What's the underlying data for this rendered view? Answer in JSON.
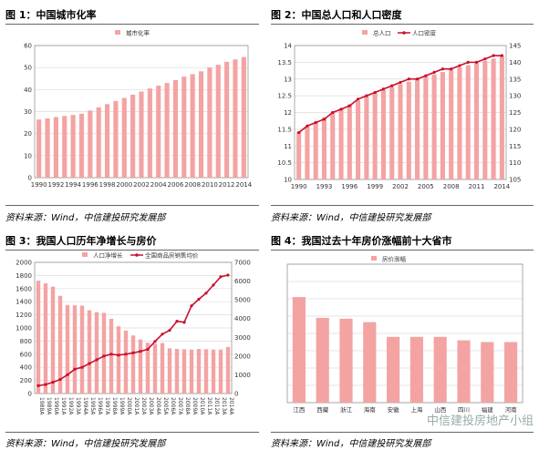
{
  "colors": {
    "bar": "#f4a3a3",
    "line": "#c8102e",
    "axis": "#888",
    "grid": "#dcdcdc"
  },
  "panels": [
    {
      "title": "图 1：中国城市化率",
      "source": "资料来源：Wind，中信建投研究发展部",
      "chart_data": {
        "type": "bar",
        "title": "",
        "legend": [
          {
            "name": "城市化率",
            "kind": "bar"
          }
        ],
        "categories": [
          "1990",
          "1991",
          "1992",
          "1993",
          "1994",
          "1995",
          "1996",
          "1997",
          "1998",
          "1999",
          "2000",
          "2001",
          "2002",
          "2003",
          "2004",
          "2005",
          "2006",
          "2007",
          "2008",
          "2009",
          "2010",
          "2011",
          "2012",
          "2013",
          "2014"
        ],
        "x_tick_labels": [
          "1990",
          "1992",
          "1994",
          "1996",
          "1998",
          "2000",
          "2002",
          "2004",
          "2006",
          "2008",
          "2010",
          "2012",
          "2014"
        ],
        "series": [
          {
            "name": "城市化率",
            "type": "bar",
            "axis": "left",
            "values": [
              26.4,
              26.9,
              27.5,
              28.0,
              28.5,
              29.0,
              30.5,
              31.9,
              33.4,
              34.8,
              36.2,
              37.7,
              39.1,
              40.5,
              41.8,
              43.0,
              44.3,
              45.9,
              47.0,
              48.3,
              50.0,
              51.3,
              52.6,
              53.7,
              54.8
            ]
          }
        ],
        "ylim": [
          0,
          60
        ],
        "yticks": [
          0,
          10,
          20,
          30,
          40,
          50,
          60
        ]
      }
    },
    {
      "title": "图 2：中国总人口和人口密度",
      "source": "资料来源：Wind，中信建投研究发展部",
      "chart_data": {
        "type": "bar",
        "title": "",
        "legend": [
          {
            "name": "总人口",
            "kind": "bar"
          },
          {
            "name": "人口密度",
            "kind": "line"
          }
        ],
        "categories": [
          "1990",
          "1991",
          "1992",
          "1993",
          "1994",
          "1995",
          "1996",
          "1997",
          "1998",
          "1999",
          "2000",
          "2001",
          "2002",
          "2003",
          "2004",
          "2005",
          "2006",
          "2007",
          "2008",
          "2009",
          "2010",
          "2011",
          "2012",
          "2013",
          "2014"
        ],
        "x_tick_labels": [
          "1990",
          "1993",
          "1996",
          "1999",
          "2002",
          "2005",
          "2008",
          "2011",
          "2014"
        ],
        "series": [
          {
            "name": "总人口",
            "type": "bar",
            "axis": "left",
            "values": [
              11.43,
              11.58,
              11.72,
              11.85,
              11.99,
              12.11,
              12.24,
              12.36,
              12.48,
              12.58,
              12.67,
              12.76,
              12.85,
              12.92,
              13.0,
              13.08,
              13.14,
              13.21,
              13.28,
              13.35,
              13.41,
              13.47,
              13.54,
              13.61,
              13.68
            ]
          },
          {
            "name": "人口密度",
            "type": "line",
            "axis": "right",
            "values": [
              119,
              121,
              122,
              123,
              125,
              126,
              127,
              129,
              130,
              131,
              132,
              133,
              134,
              135,
              135,
              136,
              137,
              138,
              138,
              139,
              140,
              140,
              141,
              142,
              142
            ]
          }
        ],
        "ylim": [
          10,
          14
        ],
        "yticks": [
          10,
          10.5,
          11,
          11.5,
          12,
          12.5,
          13,
          13.5,
          14
        ],
        "y2lim": [
          105,
          145
        ],
        "y2ticks": [
          105,
          110,
          115,
          120,
          125,
          130,
          135,
          140,
          145
        ]
      }
    },
    {
      "title": "图 3：我国人口历年净增长与房价",
      "source": "资料来源：Wind，中信建投研究发展部",
      "chart_data": {
        "type": "bar",
        "title": "",
        "legend": [
          {
            "name": "人口净增长",
            "kind": "bar"
          },
          {
            "name": "全国商品房销售均价",
            "kind": "line"
          }
        ],
        "categories": [
          "1988",
          "1989",
          "1990",
          "1991",
          "1992",
          "1993",
          "1994",
          "1995",
          "1996",
          "1997",
          "1998",
          "1999",
          "2000",
          "2001",
          "2002",
          "2003",
          "2004",
          "2005",
          "2006",
          "2007",
          "2008",
          "2009",
          "2010",
          "2011",
          "2012",
          "2013",
          "2014"
        ],
        "x_tick_labels": [
          "1988A",
          "1989A",
          "1990A",
          "1991A",
          "1992A",
          "1993A",
          "1994A",
          "1995A",
          "1996A",
          "1997A",
          "1998A",
          "1999A",
          "2000A",
          "2001A",
          "2002A",
          "2003A",
          "2004A",
          "2005A",
          "2006A",
          "2007A",
          "2008A",
          "2009A",
          "2010A",
          "2011A",
          "2012A",
          "2013A",
          "2014A"
        ],
        "series": [
          {
            "name": "人口净增长",
            "type": "bar",
            "axis": "left",
            "values": [
              1720,
              1680,
              1630,
              1490,
              1350,
              1345,
              1340,
              1270,
              1240,
              1230,
              1140,
              1025,
              960,
              885,
              825,
              775,
              760,
              770,
              690,
              680,
              675,
              670,
              680,
              675,
              670,
              670,
              710
            ]
          },
          {
            "name": "全国商品房销售均价",
            "type": "line",
            "axis": "right",
            "values": [
              420,
              480,
              600,
              750,
              1000,
              1300,
              1400,
              1600,
              1800,
              2000,
              2100,
              2050,
              2100,
              2170,
              2250,
              2360,
              2780,
              3170,
              3370,
              3860,
              3800,
              4680,
              5030,
              5360,
              5790,
              6230,
              6320
            ]
          }
        ],
        "ylim": [
          0,
          2000
        ],
        "yticks": [
          0,
          200,
          400,
          600,
          800,
          1000,
          1200,
          1400,
          1600,
          1800,
          2000
        ],
        "y2lim": [
          0,
          7000
        ],
        "y2ticks": [
          0,
          1000,
          2000,
          3000,
          4000,
          5000,
          6000,
          7000
        ]
      }
    },
    {
      "title": "图 4：我国过去十年房价涨幅前十大省市",
      "source": "资料来源：Wind，中信建投研究发展部",
      "chart_data": {
        "type": "bar",
        "title": "",
        "legend": [
          {
            "name": "房价涨幅",
            "kind": "bar"
          }
        ],
        "categories": [
          "江西",
          "西藏",
          "浙江",
          "海南",
          "安徽",
          "上海",
          "山西",
          "四川",
          "福建",
          "河南"
        ],
        "x_tick_labels": [
          "江西",
          "西藏",
          "浙江",
          "海南",
          "安徽",
          "上海",
          "山西",
          "四川",
          "福建",
          "河南"
        ],
        "series": [
          {
            "name": "房价涨幅",
            "type": "bar",
            "axis": "left",
            "values": [
              6.1,
              4.9,
              4.85,
              4.65,
              3.8,
              3.8,
              3.8,
              3.6,
              3.5,
              3.5
            ]
          }
        ],
        "ylim": [
          0,
          8
        ],
        "yticks": [],
        "show_y_labels": false
      }
    }
  ],
  "watermark": "中信建投房地产小组"
}
